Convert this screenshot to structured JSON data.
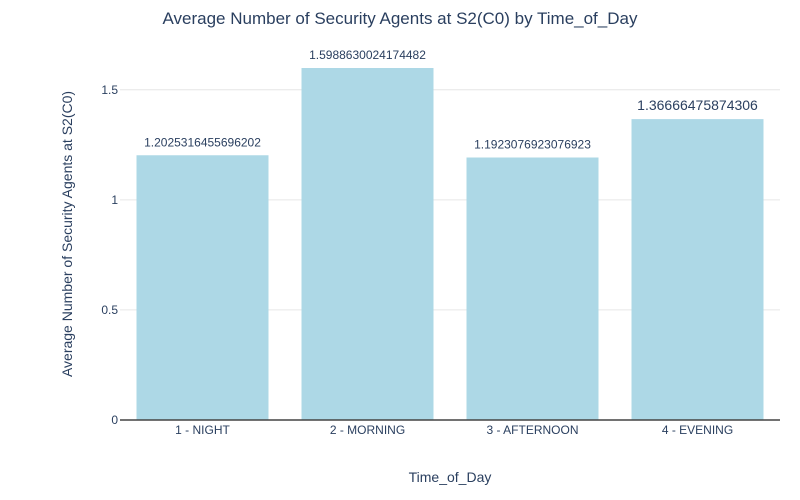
{
  "chart_data": {
    "type": "bar",
    "title": "Average Number of Security Agents at S2(C0) by Time_of_Day",
    "xlabel": "Time_of_Day",
    "ylabel": "Average Number of Security Agents at S2(C0)",
    "categories": [
      "1 - NIGHT",
      "2 - MORNING",
      "3 - AFTERNOON",
      "4 - EVENING"
    ],
    "values": [
      1.2025316455696202,
      1.5988630024174482,
      1.1923076923076923,
      1.36666475874306
    ],
    "value_labels": [
      "1.2025316455696202",
      "1.5988630024174482",
      "1.1923076923076923",
      "1.36666475874306"
    ],
    "ylim": [
      0,
      1.5988630024174482
    ],
    "yticks": [
      0,
      0.5,
      1,
      1.5
    ],
    "ytick_labels": [
      "0",
      "0.5",
      "1",
      "1.5"
    ],
    "grid": true,
    "bar_color": "#add8e6"
  }
}
